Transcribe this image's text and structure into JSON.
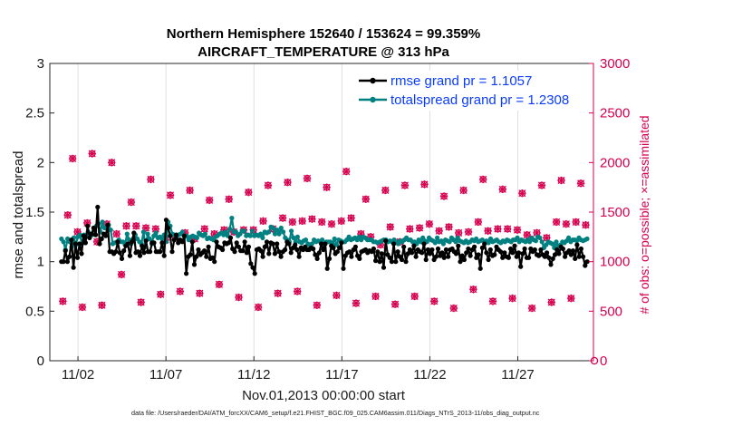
{
  "chart_data": {
    "type": "line",
    "title_line1": "Northern Hemisphere 152640 / 153624 = 99.359%",
    "title_line2": "AIRCRAFT_TEMPERATURE @ 313 hPa",
    "xlabel": "Nov.01,2013 00:00:00 start",
    "ylabel_left": "rmse and totalspread",
    "ylabel_right": "# of obs: o=possible; ×=assimilated",
    "footnote": "data file: /Users/raeder/DAI/ATM_forcXX/CAM6_setup/f.e21.FHIST_BGC.f09_025.CAM6assim.011/Diags_NTrS_2013-11/obs_diag_output.nc",
    "xlim": [
      0.4,
      31.3
    ],
    "ylim_left": [
      0,
      3
    ],
    "ylim_right": [
      0,
      3000
    ],
    "x_ticks": [
      {
        "value": 2,
        "label": "11/02"
      },
      {
        "value": 7,
        "label": "11/07"
      },
      {
        "value": 12,
        "label": "11/12"
      },
      {
        "value": 17,
        "label": "11/17"
      },
      {
        "value": 22,
        "label": "11/22"
      },
      {
        "value": 27,
        "label": "11/27"
      }
    ],
    "y_ticks_left": [
      {
        "value": 0,
        "label": "0"
      },
      {
        "value": 0.5,
        "label": "0.5"
      },
      {
        "value": 1,
        "label": "1"
      },
      {
        "value": 1.5,
        "label": "1.5"
      },
      {
        "value": 2,
        "label": "2"
      },
      {
        "value": 2.5,
        "label": "2.5"
      },
      {
        "value": 3,
        "label": "3"
      }
    ],
    "y_ticks_right": [
      {
        "value": 0,
        "label": "0"
      },
      {
        "value": 500,
        "label": "500"
      },
      {
        "value": 1000,
        "label": "1000"
      },
      {
        "value": 1500,
        "label": "1500"
      },
      {
        "value": 2000,
        "label": "2000"
      },
      {
        "value": 2500,
        "label": "2500"
      },
      {
        "value": 3000,
        "label": "3000"
      }
    ],
    "colors": {
      "rmse": "#000000",
      "spread": "#008080",
      "obs": "#d6004f",
      "grid": "#d9d9d9",
      "axis": "#262626",
      "legend_text": "#0a3cff"
    },
    "series": [
      {
        "name": "rmse",
        "legend": "rmse grand pr = 1.1057",
        "values": [
          1.0,
          1.0,
          1.11,
          1.0,
          1.05,
          1.22,
          0.94,
          1.18,
          1.04,
          1.18,
          1.08,
          1.26,
          1.19,
          1.36,
          1.24,
          1.28,
          1.34,
          1.27,
          1.55,
          1.18,
          1.23,
          1.28,
          1.26,
          1.37,
          1.1,
          1.1,
          1.08,
          1.1,
          1.2,
          1.09,
          1.03,
          1.11,
          1.16,
          1.18,
          1.06,
          1.2,
          1.29,
          1.09,
          1.1,
          1.06,
          1.16,
          1.09,
          1.21,
          1.1,
          1.1,
          1.19,
          1.19,
          1.1,
          1.1,
          1.1,
          1.19,
          1.06,
          1.42,
          1.34,
          1.26,
          1.1,
          1.22,
          1.27,
          1.19,
          1.22,
          1.2,
          1.26,
          0.88,
          1.05,
          1.07,
          1.2,
          0.97,
          1.05,
          1.12,
          1.07,
          1.09,
          1.11,
          1.05,
          1.15,
          1.03,
          1.04,
          1.0,
          1.2,
          1.15,
          1.14,
          1.12,
          1.19,
          1.18,
          1.19,
          1.24,
          1.13,
          1.1,
          1.19,
          1.15,
          1.11,
          1.11,
          1.2,
          1.09,
          1.15,
          0.98,
          0.94,
          0.88,
          1.12,
          1.13,
          1.11,
          1.05,
          1.15,
          1.2,
          1.08,
          1.19,
          1.18,
          1.08,
          1.18,
          1.1,
          1.05,
          1.1,
          1.12,
          1.2,
          1.18,
          1.09,
          1.14,
          1.17,
          1.12,
          1.05,
          1.14,
          1.12,
          1.15,
          1.12,
          1.12,
          1.14,
          1.13,
          1.07,
          1.03,
          1.09,
          1.18,
          1.12,
          1.18,
          0.93,
          1.03,
          1.16,
          1.14,
          1.08,
          1.1,
          1.14,
          1.19,
          0.93,
          1.06,
          1.09,
          1.1,
          1.05,
          1.12,
          1.15,
          1.06,
          1.03,
          1.1,
          1.11,
          1.12,
          1.09,
          1.11,
          1.1,
          1.13,
          1.01,
          1.1,
          1.0,
          1.08,
          0.94,
          1.21,
          1.07,
          1.04,
          1.0,
          1.18,
          1.0,
          1.1,
          1.05,
          1.02,
          1.15,
          1.0,
          1.08,
          1.12,
          1.09,
          1.16,
          1.05,
          1.12,
          1.1,
          1.09,
          1.18,
          1.02,
          1.12,
          1.08,
          1.12,
          1.02,
          1.05,
          1.13,
          1.06,
          1.09,
          1.04,
          1.12,
          1.05,
          1.12,
          1.13,
          1.1,
          1.08,
          1.16,
          1.0,
          1.06,
          1.02,
          1.09,
          1.13,
          1.06,
          1.12,
          1.15,
          1.04,
          1.07,
          0.93,
          1.14,
          1.18,
          1.09,
          1.02,
          1.12,
          1.06,
          1.07,
          1.15,
          1.12,
          1.1,
          1.04,
          1.09,
          1.05,
          1.04,
          1.13,
          1.09,
          1.16,
          1.05,
          1.09,
          0.95,
          1.08,
          1.13,
          1.04,
          1.04,
          1.13,
          1.1,
          1.12,
          1.07,
          1.06,
          1.12,
          1.07,
          1.05,
          1.09,
          1.04,
          0.97,
          1.03,
          1.07,
          1.12,
          1.08,
          1.15,
          1.13,
          1.05,
          1.09,
          1.11,
          1.07,
          1.11,
          1.03,
          1.17,
          1.05,
          1.13,
          1.05,
          0.96,
          1.0
        ]
      },
      {
        "name": "totalspread",
        "legend": "totalspread grand pr = 1.2308",
        "values": [
          1.23,
          1.2,
          1.12,
          1.23,
          1.2,
          1.15,
          1.24,
          1.17,
          1.25,
          1.27,
          1.18,
          1.27,
          1.25,
          1.3,
          1.28,
          1.27,
          1.34,
          1.36,
          1.38,
          1.3,
          1.4,
          1.34,
          1.34,
          1.37,
          1.32,
          1.18,
          1.19,
          1.2,
          1.22,
          1.2,
          1.2,
          1.17,
          1.28,
          1.22,
          1.18,
          1.23,
          1.27,
          1.23,
          1.2,
          1.18,
          1.3,
          1.15,
          1.28,
          1.23,
          1.18,
          1.26,
          1.29,
          1.24,
          1.25,
          1.23,
          1.27,
          1.2,
          1.4,
          1.36,
          1.28,
          1.27,
          1.25,
          1.27,
          1.28,
          1.3,
          1.25,
          1.26,
          1.22,
          1.25,
          1.26,
          1.25,
          1.24,
          1.29,
          1.27,
          1.26,
          1.28,
          1.23,
          1.24,
          1.23,
          1.22,
          1.25,
          1.26,
          1.28,
          1.29,
          1.27,
          1.3,
          1.26,
          1.33,
          1.44,
          1.3,
          1.3,
          1.26,
          1.28,
          1.31,
          1.31,
          1.26,
          1.27,
          1.26,
          1.31,
          1.26,
          1.27,
          1.26,
          1.28,
          1.24,
          1.3,
          1.29,
          1.3,
          1.35,
          1.34,
          1.28,
          1.32,
          1.28,
          1.34,
          1.3,
          1.24,
          1.22,
          1.2,
          1.31,
          1.24,
          1.2,
          1.25,
          1.2,
          1.19,
          1.21,
          1.22,
          1.18,
          1.16,
          1.18,
          1.22,
          1.2,
          1.21,
          1.2,
          1.22,
          1.18,
          1.2,
          1.2,
          1.2,
          1.18,
          1.23,
          1.17,
          1.22,
          1.21,
          1.2,
          1.2,
          1.22,
          1.25,
          1.22,
          1.23,
          1.24,
          1.22,
          1.25,
          1.22,
          1.25,
          1.24,
          1.22,
          1.22,
          1.22,
          1.2,
          1.2,
          1.19,
          1.2,
          1.21,
          1.22,
          1.22,
          1.2,
          1.21,
          1.2,
          1.22,
          1.2,
          1.18,
          1.21,
          1.2,
          1.22,
          1.24,
          1.22,
          1.22,
          1.2,
          1.2,
          1.18,
          1.22,
          1.2,
          1.24,
          1.21,
          1.2,
          1.24,
          1.22,
          1.21,
          1.19,
          1.24,
          1.2,
          1.21,
          1.18,
          1.22,
          1.21,
          1.2,
          1.24,
          1.22,
          1.2,
          1.24,
          1.21,
          1.2,
          1.19,
          1.21,
          1.19,
          1.2,
          1.22,
          1.21,
          1.23,
          1.2,
          1.21,
          1.22,
          1.2,
          1.21,
          1.19,
          1.23,
          1.2,
          1.21,
          1.22,
          1.2,
          1.19,
          1.21,
          1.2,
          1.22,
          1.21,
          1.2,
          1.22,
          1.22,
          1.24,
          1.2,
          1.22,
          1.21,
          1.2,
          1.22,
          1.2,
          1.24,
          1.22,
          1.21,
          1.25,
          1.24,
          1.2,
          1.14,
          1.17,
          1.2,
          1.19,
          1.18,
          1.14,
          1.2,
          1.16,
          1.17,
          1.2,
          1.19,
          1.21,
          1.24,
          1.2,
          1.22,
          1.22,
          1.21,
          1.24,
          1.22,
          1.21,
          1.22,
          1.23
        ]
      }
    ],
    "obs_counts_possible": [
      600,
      1470,
      2040,
      1300,
      540,
      1390,
      2090,
      1200,
      560,
      1380,
      2000,
      1280,
      870,
      1360,
      1600,
      1360,
      590,
      1340,
      1830,
      1330,
      670,
      1220,
      1670,
      1250,
      700,
      1290,
      1720,
      1230,
      680,
      1330,
      1620,
      1280,
      770,
      1320,
      1630,
      1300,
      640,
      1320,
      1700,
      1320,
      540,
      1410,
      1770,
      1330,
      680,
      1440,
      1800,
      1400,
      700,
      1410,
      1840,
      1430,
      560,
      1400,
      1750,
      1380,
      660,
      1410,
      1910,
      1440,
      580,
      1280,
      1630,
      1250,
      650,
      1170,
      1720,
      1350,
      570,
      1200,
      1770,
      1330,
      650,
      1340,
      1780,
      1380,
      600,
      1310,
      1660,
      1350,
      530,
      1290,
      1720,
      1300,
      720,
      1400,
      1830,
      1310,
      600,
      1330,
      1730,
      1330,
      630,
      1320,
      1690,
      1270,
      530,
      1290,
      1770,
      1240,
      590,
      1400,
      1820,
      1380,
      630,
      1400,
      1790,
      1370
    ]
  }
}
